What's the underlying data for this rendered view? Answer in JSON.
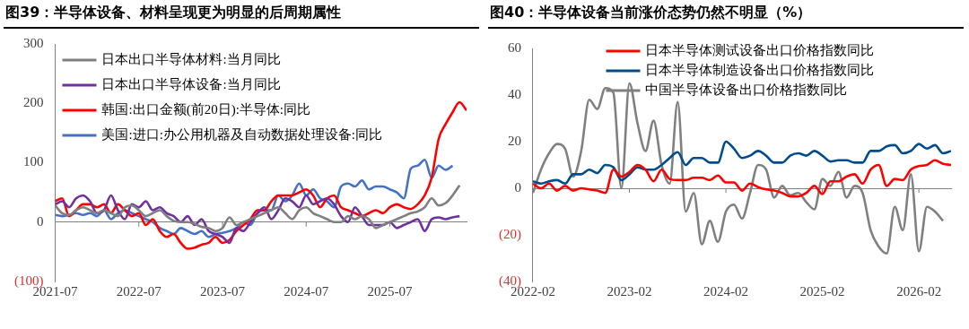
{
  "chart_data": [
    {
      "type": "line",
      "title": "图39：半导体设备、材料呈现更为明显的后周期属性",
      "x": [
        "2021-07",
        "2021-08",
        "2021-09",
        "2021-10",
        "2021-11",
        "2021-12",
        "2022-01",
        "2022-02",
        "2022-03",
        "2022-04",
        "2022-05",
        "2022-06",
        "2022-07",
        "2022-08",
        "2022-09",
        "2022-10",
        "2022-11",
        "2022-12",
        "2023-01",
        "2023-02",
        "2023-03",
        "2023-04",
        "2023-05",
        "2023-06",
        "2023-07",
        "2023-08",
        "2023-09",
        "2023-10",
        "2023-11",
        "2023-12",
        "2024-01",
        "2024-02",
        "2024-03",
        "2024-04",
        "2024-05",
        "2024-06",
        "2024-07",
        "2024-08",
        "2024-09",
        "2024-10",
        "2024-11",
        "2024-12",
        "2025-01",
        "2025-02",
        "2025-03",
        "2025-04",
        "2025-05",
        "2025-06",
        "2025-07",
        "2025-08",
        "2025-09",
        "2025-10",
        "2025-11",
        "2025-12",
        "2026-01",
        "2026-02",
        "2026-03",
        "2026-04",
        "2026-05",
        "2026-06"
      ],
      "series": [
        {
          "name": "日本出口半导体材料:当月同比",
          "color": "#808080",
          "values": [
            28,
            15,
            12,
            20,
            25,
            20,
            15,
            20,
            15,
            10,
            25,
            28,
            20,
            10,
            15,
            20,
            10,
            2,
            0,
            0,
            -3,
            -8,
            -10,
            -15,
            -10,
            8,
            -5,
            0,
            5,
            10,
            15,
            20,
            25,
            15,
            5,
            20,
            25,
            15,
            10,
            5,
            0,
            0,
            10,
            5,
            10,
            5,
            -10,
            -5,
            0,
            5,
            10,
            15,
            18,
            25,
            40,
            28,
            32,
            45,
            62,
            null
          ]
        },
        {
          "name": "日本出口半导体设备:当月同比",
          "color": "#7030a0",
          "values": [
            30,
            35,
            25,
            40,
            45,
            35,
            15,
            20,
            45,
            20,
            5,
            30,
            25,
            35,
            20,
            25,
            15,
            10,
            0,
            10,
            -5,
            5,
            -15,
            -20,
            -25,
            -35,
            -10,
            -15,
            0,
            15,
            25,
            5,
            20,
            40,
            35,
            25,
            45,
            30,
            35,
            40,
            30,
            10,
            0,
            25,
            10,
            -5,
            -5,
            -5,
            0,
            -10,
            -5,
            0,
            5,
            -15,
            5,
            8,
            5,
            8,
            10,
            null
          ]
        },
        {
          "name": "韩国:出口金额(前20日):半导体:同比",
          "color": "#ff0000",
          "values": [
            35,
            40,
            10,
            20,
            30,
            30,
            25,
            30,
            15,
            30,
            20,
            10,
            15,
            -5,
            5,
            -15,
            -25,
            -20,
            -35,
            -45,
            -43,
            -38,
            -35,
            -25,
            -35,
            -30,
            -15,
            -5,
            5,
            20,
            20,
            35,
            45,
            45,
            45,
            50,
            55,
            45,
            25,
            40,
            45,
            25,
            20,
            15,
            10,
            15,
            20,
            15,
            25,
            30,
            25,
            22,
            30,
            45,
            75,
            140,
            165,
            185,
            202,
            188
          ]
        },
        {
          "name": "美国:进口:办公用机器及自动数据处理设备:同比",
          "color": "#4472c4",
          "values": [
            12,
            10,
            12,
            15,
            12,
            15,
            10,
            20,
            5,
            15,
            20,
            15,
            10,
            5,
            0,
            -10,
            -15,
            -20,
            -10,
            -15,
            -20,
            -15,
            -25,
            -20,
            -18,
            -15,
            -10,
            0,
            -5,
            15,
            20,
            20,
            45,
            35,
            45,
            65,
            45,
            55,
            40,
            35,
            25,
            60,
            65,
            60,
            70,
            55,
            60,
            60,
            55,
            50,
            40,
            90,
            95,
            105,
            75,
            95,
            88,
            95,
            null,
            null
          ]
        }
      ],
      "xlim": [
        "2021-07",
        "2026-06"
      ],
      "xticks": [
        "2021-07",
        "2022-07",
        "2023-07",
        "2024-07",
        "2025-07"
      ],
      "ylim": [
        -100,
        300
      ],
      "yticks": [
        {
          "value": -100,
          "label": "(100)"
        },
        0,
        100,
        200,
        300
      ],
      "legend": "top left",
      "marker": "none",
      "line_style": "solid"
    },
    {
      "type": "line",
      "title": "图40：半导体设备当前涨价态势仍然不明显（%）",
      "x": [
        "2022-02",
        "2022-03",
        "2022-04",
        "2022-05",
        "2022-06",
        "2022-07",
        "2022-08",
        "2022-09",
        "2022-10",
        "2022-11",
        "2022-12",
        "2023-01",
        "2023-02",
        "2023-03",
        "2023-04",
        "2023-05",
        "2023-06",
        "2023-07",
        "2023-08",
        "2023-09",
        "2023-10",
        "2023-11",
        "2023-12",
        "2024-01",
        "2024-02",
        "2024-03",
        "2024-04",
        "2024-05",
        "2024-06",
        "2024-07",
        "2024-08",
        "2024-09",
        "2024-10",
        "2024-11",
        "2024-12",
        "2025-01",
        "2025-02",
        "2025-03",
        "2025-04",
        "2025-05",
        "2025-06",
        "2025-07",
        "2025-08",
        "2025-09",
        "2025-10",
        "2025-11",
        "2025-12",
        "2026-01",
        "2026-02",
        "2026-03",
        "2026-04",
        "2026-05",
        "2026-06"
      ],
      "series": [
        {
          "name": "日本半导体测试设备出口价格指数同比",
          "color": "#ff0000",
          "values": [
            2,
            0,
            2,
            -1,
            1,
            -1,
            0,
            -0.5,
            -1,
            -2,
            8,
            5,
            7,
            10,
            8,
            3,
            8,
            4,
            3.5,
            3.5,
            4.5,
            4.5,
            3.5,
            5.5,
            2.5,
            2.5,
            -1,
            2,
            0.5,
            -0.5,
            -1,
            -2,
            -3.5,
            -3.5,
            -2,
            1,
            -2.5,
            3,
            3,
            5,
            6,
            2,
            8,
            10,
            1,
            4,
            3.5,
            8,
            9.5,
            10,
            12,
            10.5,
            10
          ]
        },
        {
          "name": "日本半导体制造设备出口价格指数同比",
          "color": "#004c8c",
          "values": [
            3,
            2,
            3,
            3.5,
            2,
            6,
            6,
            8,
            6.5,
            10,
            9,
            3.5,
            6,
            9,
            8,
            8,
            10,
            13,
            15.5,
            10,
            13,
            13,
            11,
            11,
            20,
            17,
            13,
            14,
            16,
            14,
            11,
            11,
            14,
            15,
            14,
            16,
            14,
            11.5,
            12,
            12,
            11,
            11,
            16,
            16,
            18,
            18.5,
            15,
            16,
            19,
            17,
            18.5,
            15,
            16
          ]
        },
        {
          "name": "中国半导体设备出口价格指数同比",
          "color": "#808080",
          "values": [
            -2,
            8,
            15,
            19,
            17,
            5,
            16,
            38,
            34,
            43,
            41,
            0,
            45,
            28,
            16,
            29,
            10,
            2,
            37,
            -10,
            -2,
            -24,
            -14,
            -23,
            -10,
            -7,
            -13,
            -2,
            10,
            8,
            -4,
            1,
            -3,
            -2,
            -6,
            -9,
            4,
            1,
            7,
            -4,
            1,
            -2,
            -18,
            -25,
            -28,
            -8,
            -18,
            6,
            -27,
            -8,
            -10,
            -14,
            null
          ]
        }
      ],
      "xlim": [
        "2022-02",
        "2026-06"
      ],
      "xticks": [
        "2022-02",
        "2023-02",
        "2024-02",
        "2025-02",
        "2026-02"
      ],
      "ylim": [
        -40,
        60
      ],
      "yticks": [
        {
          "value": -40,
          "label": "(40)"
        },
        {
          "value": -20,
          "label": "(20)"
        },
        0,
        20,
        40,
        60
      ],
      "legend": "top",
      "marker": "none",
      "line_style": "solid"
    }
  ]
}
